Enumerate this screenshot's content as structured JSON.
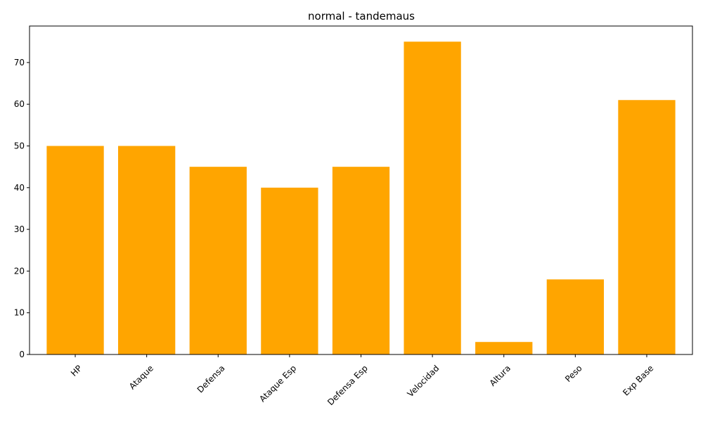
{
  "chart_data": {
    "type": "bar",
    "title": "normal - tandemaus",
    "xlabel": "",
    "ylabel": "",
    "categories": [
      "HP",
      "Ataque",
      "Defensa",
      "Ataque Esp",
      "Defensa Esp",
      "Velocidad",
      "Altura",
      "Peso",
      "Exp Base"
    ],
    "values": [
      50,
      50,
      45,
      40,
      45,
      75,
      3,
      18,
      61
    ],
    "ylim": [
      0,
      78.75
    ],
    "yticks": [
      0,
      10,
      20,
      30,
      40,
      50,
      60,
      70
    ],
    "bar_color": "#ffa500",
    "grid": false
  }
}
